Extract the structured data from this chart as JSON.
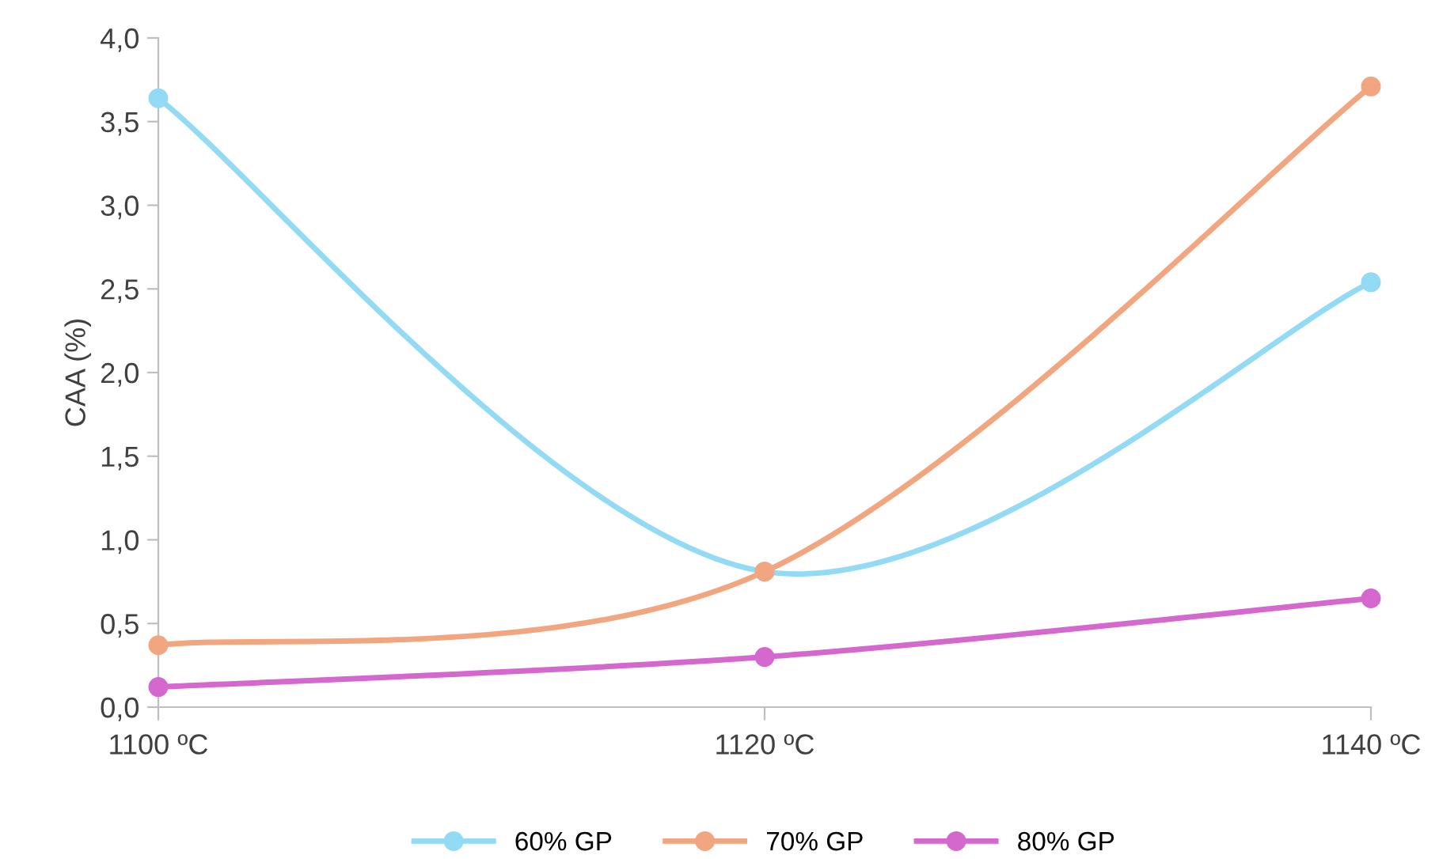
{
  "chart_data": {
    "type": "line",
    "ylabel": "CAA (%)",
    "categories": [
      "1100 ºC",
      "1120 ºC",
      "1140 ºC"
    ],
    "series": [
      {
        "name": "60% GP",
        "color": "#93daf4",
        "values": [
          3.64,
          0.81,
          2.54
        ]
      },
      {
        "name": "70% GP",
        "color": "#f2a67f",
        "values": [
          0.37,
          0.81,
          3.71
        ]
      },
      {
        "name": "80% GP",
        "color": "#d468cf",
        "values": [
          0.12,
          0.3,
          0.65
        ]
      }
    ],
    "ylim": [
      0,
      4
    ],
    "yticks": [
      {
        "value": 0,
        "label": "0,0"
      },
      {
        "value": 0.5,
        "label": "0,5"
      },
      {
        "value": 1,
        "label": "1,0"
      },
      {
        "value": 1.5,
        "label": "1,5"
      },
      {
        "value": 2,
        "label": "2,0"
      },
      {
        "value": 2.5,
        "label": "2,5"
      },
      {
        "value": 3,
        "label": "3,0"
      },
      {
        "value": 3.5,
        "label": "3,5"
      },
      {
        "value": 4,
        "label": "4,0"
      }
    ],
    "grid": false,
    "legend": "bottom",
    "marker": "circle",
    "line_style": "solid"
  }
}
